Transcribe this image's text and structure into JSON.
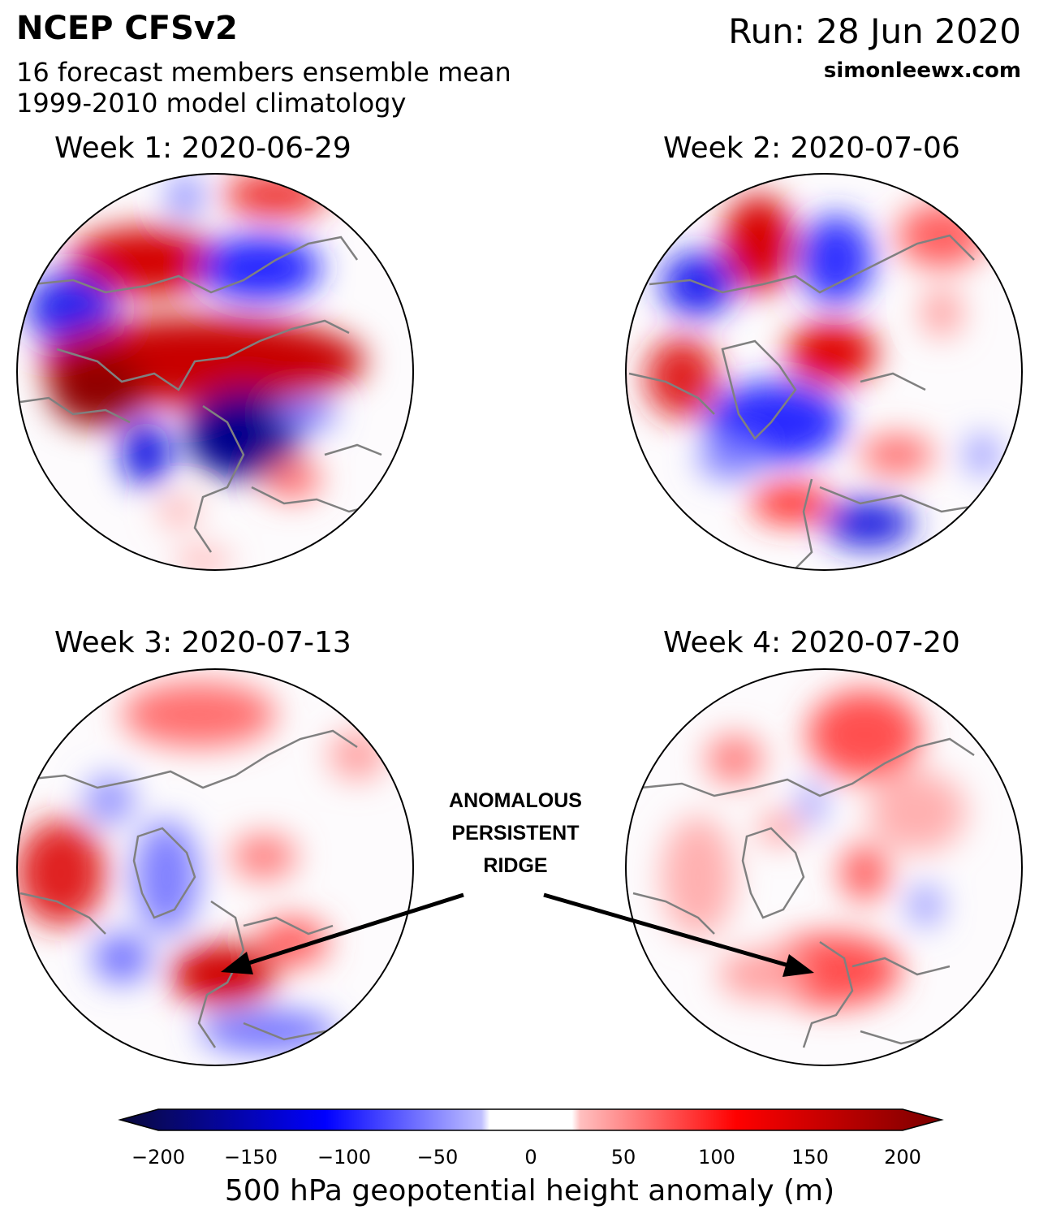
{
  "header": {
    "title": "NCEP CFSv2",
    "subtitle_line1": "16 forecast members ensemble mean",
    "subtitle_line2": "1999-2010 model climatology",
    "run": "Run: 28 Jun 2020",
    "site": "simonleewx.com"
  },
  "panels": [
    {
      "title": "Week 1: 2020-06-29"
    },
    {
      "title": "Week 2: 2020-07-06"
    },
    {
      "title": "Week 3: 2020-07-13"
    },
    {
      "title": "Week 4: 2020-07-20"
    }
  ],
  "annotation": {
    "line1": "ANOMALOUS",
    "line2": "PERSISTENT",
    "line3": "RIDGE"
  },
  "colorbar": {
    "label": "500 hPa geopotential height anomaly (m)",
    "ticks": [
      "−200",
      "−150",
      "−100",
      "−50",
      "0",
      "50",
      "100",
      "150",
      "200"
    ],
    "tick_values": [
      -200,
      -150,
      -100,
      -50,
      0,
      50,
      100,
      150,
      200
    ],
    "range": [
      -200,
      200
    ],
    "colors": {
      "min": "#0a0a3a",
      "mid": "#ffffff",
      "max": "#7a0000",
      "blue": "#0000ff",
      "red": "#ff0000"
    }
  }
}
